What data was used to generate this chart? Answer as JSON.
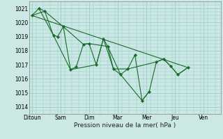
{
  "xlabel": "Pression niveau de la mer( hPa )",
  "xtick_labels": [
    "Ditoun",
    "Sam",
    "Dim",
    "Mar",
    "Mer",
    "Jeu",
    "Ven"
  ],
  "xtick_positions": [
    0,
    2,
    4,
    6,
    8,
    10,
    12
  ],
  "ylim": [
    1013.5,
    1021.5
  ],
  "xlim": [
    -0.2,
    13.2
  ],
  "bg_color": "#cce8e4",
  "grid_color": "#99cccc",
  "line_color": "#1a6b2a",
  "marker_color": "#1a6b2a",
  "series1": [
    [
      0.0,
      1020.5
    ],
    [
      0.5,
      1021.0
    ],
    [
      0.9,
      1020.8
    ],
    [
      1.5,
      1019.1
    ],
    [
      1.8,
      1019.0
    ],
    [
      2.2,
      1019.7
    ],
    [
      2.7,
      1016.65
    ],
    [
      3.1,
      1016.85
    ],
    [
      3.6,
      1018.45
    ],
    [
      4.0,
      1018.5
    ],
    [
      4.5,
      1017.0
    ],
    [
      5.0,
      1018.85
    ],
    [
      5.3,
      1018.3
    ],
    [
      5.7,
      1016.7
    ],
    [
      6.2,
      1016.3
    ],
    [
      6.7,
      1016.7
    ],
    [
      7.2,
      1017.7
    ],
    [
      7.7,
      1014.45
    ],
    [
      8.2,
      1015.1
    ],
    [
      8.7,
      1017.2
    ],
    [
      9.2,
      1017.4
    ],
    [
      9.7,
      1016.9
    ],
    [
      10.2,
      1016.3
    ],
    [
      10.9,
      1016.8
    ]
  ],
  "trend_line": [
    [
      0.0,
      1020.5
    ],
    [
      10.9,
      1016.8
    ]
  ],
  "extra_line1": [
    [
      0.0,
      1020.5
    ],
    [
      0.9,
      1020.8
    ],
    [
      2.2,
      1019.7
    ],
    [
      3.6,
      1018.45
    ],
    [
      4.0,
      1018.5
    ],
    [
      5.3,
      1018.3
    ],
    [
      6.2,
      1016.3
    ],
    [
      7.7,
      1014.45
    ],
    [
      8.2,
      1015.1
    ]
  ],
  "extra_line2": [
    [
      0.5,
      1021.0
    ],
    [
      1.5,
      1019.1
    ],
    [
      2.7,
      1016.65
    ],
    [
      4.5,
      1017.0
    ],
    [
      5.0,
      1018.85
    ],
    [
      5.7,
      1016.7
    ],
    [
      6.7,
      1016.7
    ],
    [
      8.7,
      1017.2
    ],
    [
      9.2,
      1017.4
    ],
    [
      9.7,
      1016.9
    ],
    [
      10.2,
      1016.3
    ],
    [
      10.9,
      1016.8
    ]
  ]
}
